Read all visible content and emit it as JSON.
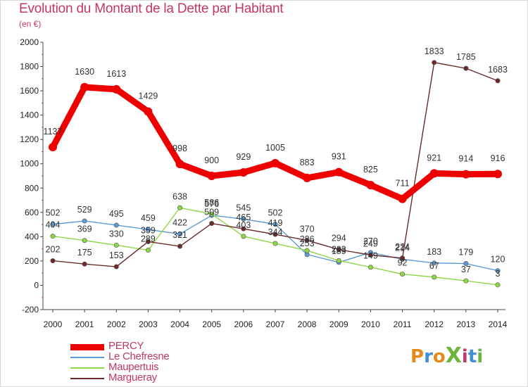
{
  "title": "Evolution du Montant de la Dette par Habitant",
  "subtitle": "(en €)",
  "logo": {
    "text": "ProXiti",
    "colors": [
      "#e08c1e",
      "#3f8fd2",
      "#e08c1e",
      "#6cb43b",
      "#c2366a",
      "#3f8fd2",
      "#6cb43b"
    ]
  },
  "chart_data": {
    "type": "line",
    "x": [
      "2000",
      "2001",
      "2002",
      "2003",
      "2004",
      "2005",
      "2006",
      "2007",
      "2008",
      "2009",
      "2010",
      "2011",
      "2012",
      "2013",
      "2014"
    ],
    "ylim": [
      -200,
      2000
    ],
    "yticks": [
      "-200",
      "0",
      "200",
      "400",
      "600",
      "800",
      "1000",
      "1200",
      "1400",
      "1600",
      "1800",
      "2000"
    ],
    "grid": false,
    "legend_position": "bottom-left",
    "series": [
      {
        "name": "PERCY",
        "color": "#ee0000",
        "emphasis": true,
        "values": [
          1137,
          1630,
          1613,
          1429,
          998,
          900,
          929,
          1005,
          883,
          931,
          825,
          711,
          921,
          914,
          916
        ],
        "labels": [
          "1137",
          "1630",
          "1613",
          "1429",
          "998",
          "900",
          "929",
          "1005",
          "883",
          "931",
          "825",
          "711",
          "921",
          "914",
          "916"
        ]
      },
      {
        "name": "Le Chefresne",
        "color": "#5b9bd5",
        "values": [
          502,
          529,
          495,
          459,
          422,
          576,
          545,
          502,
          253,
          189,
          270,
          214,
          183,
          179,
          120
        ],
        "labels": [
          "502",
          "529",
          "495",
          "459",
          "422",
          "576",
          "545",
          "502",
          "253",
          "189",
          "270",
          "214",
          "183",
          "179",
          "120"
        ]
      },
      {
        "name": "Maupertuis",
        "color": "#8fd645",
        "values": [
          404,
          369,
          330,
          289,
          638,
          586,
          403,
          344,
          286,
          203,
          149,
          92,
          67,
          37,
          3
        ],
        "labels": [
          "404",
          "369",
          "330",
          "289",
          "638",
          "586",
          "403",
          "344",
          "286",
          "203",
          "149",
          "92",
          "67",
          "37",
          "3"
        ]
      },
      {
        "name": "Margueray",
        "color": "#6b2a2a",
        "values": [
          202,
          175,
          153,
          359,
          321,
          509,
          465,
          419,
          370,
          294,
          249,
          224,
          1833,
          1785,
          1683
        ],
        "labels": [
          "202",
          "175",
          "153",
          "359",
          "321",
          "509",
          "465",
          "419",
          "370",
          "294",
          "249",
          "224",
          "1833",
          "1785",
          "1683"
        ]
      }
    ]
  }
}
